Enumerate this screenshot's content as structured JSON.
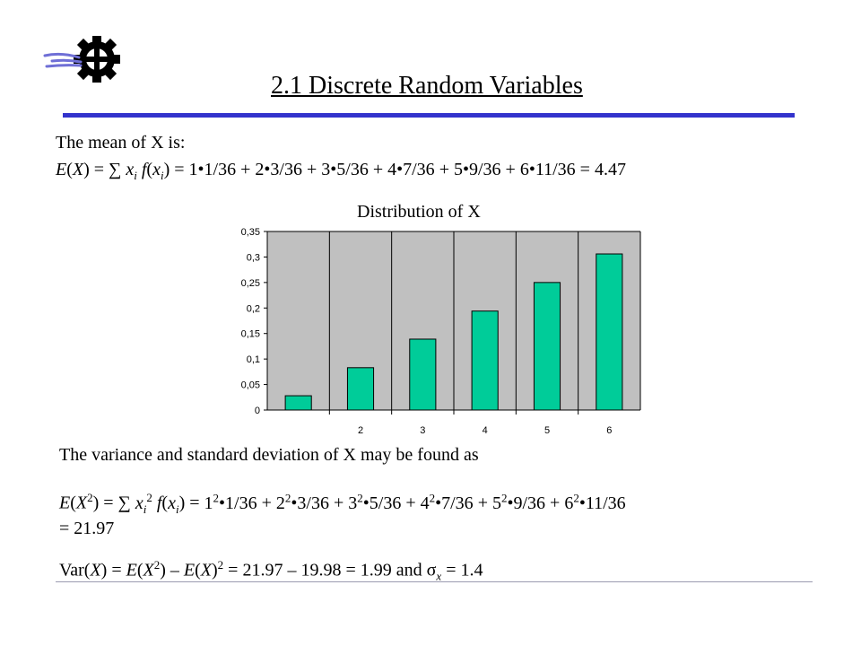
{
  "slide": {
    "title": "2.1 Discrete Random Variables",
    "mean_intro": "The mean of X is:",
    "mean_result": "4.47",
    "variance_intro": "The variance and standard deviation of X may be found as",
    "ex2_result": "21.97",
    "var_values": "21.97 – 19.98 = 1.99",
    "sigma_value": "1.4",
    "colors": {
      "accent_rule": "#3333cc",
      "bars": "#00cc99"
    }
  },
  "terms": [
    {
      "x": "1",
      "p": "1/36"
    },
    {
      "x": "2",
      "p": "3/36"
    },
    {
      "x": "3",
      "p": "5/36"
    },
    {
      "x": "4",
      "p": "7/36"
    },
    {
      "x": "5",
      "p": "9/36"
    },
    {
      "x": "6",
      "p": "11/36"
    }
  ],
  "chart_data": {
    "type": "bar",
    "title": "Distribution of X",
    "categories": [
      "1",
      "2",
      "3",
      "4",
      "5",
      "6"
    ],
    "category_labels": [
      "",
      "2",
      "3",
      "4",
      "5",
      "6"
    ],
    "values": [
      0.028,
      0.083,
      0.139,
      0.194,
      0.25,
      0.306
    ],
    "ylim": [
      0,
      0.35
    ],
    "yticks": [
      "0",
      "0,05",
      "0,1",
      "0,15",
      "0,2",
      "0,25",
      "0,3",
      "0,35"
    ],
    "xlabel": "",
    "ylabel": "",
    "grid": "vertical",
    "legend": "none",
    "bar_color": "#00cc99",
    "plot_background": "#c0c0c0"
  }
}
